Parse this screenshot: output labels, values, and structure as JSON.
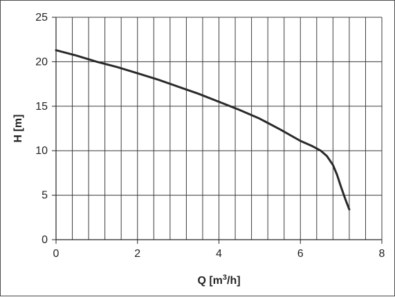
{
  "chart_data": {
    "type": "line",
    "title": "",
    "xlabel": "Q [m",
    "xlabel_sup": "3",
    "xlabel_tail": "/h]",
    "ylabel": "H [m]",
    "xlim": [
      0,
      8
    ],
    "ylim": [
      0,
      25
    ],
    "x_ticks": [
      "0",
      "2",
      "4",
      "6",
      "8"
    ],
    "y_ticks": [
      "0",
      "5",
      "10",
      "15",
      "20",
      "25"
    ],
    "vertical_grid_step": 0.4,
    "horizontal_grid_step": 5,
    "grid": true,
    "legend": "none",
    "colors": {
      "line": "#2a2a2a",
      "grid": "#3a3a3a",
      "axis": "#222222"
    },
    "series": [
      {
        "x": [
          0,
          0.5,
          1.0,
          1.5,
          2.0,
          2.5,
          3.0,
          3.5,
          4.0,
          4.5,
          5.0,
          5.5,
          6.0,
          6.3,
          6.5,
          6.65,
          6.8,
          6.9,
          7.0,
          7.1,
          7.2
        ],
        "y": [
          21.3,
          20.7,
          20.0,
          19.4,
          18.7,
          18.0,
          17.2,
          16.4,
          15.5,
          14.6,
          13.6,
          12.4,
          11.1,
          10.5,
          10.0,
          9.4,
          8.4,
          7.3,
          5.9,
          4.6,
          3.4
        ]
      }
    ]
  }
}
